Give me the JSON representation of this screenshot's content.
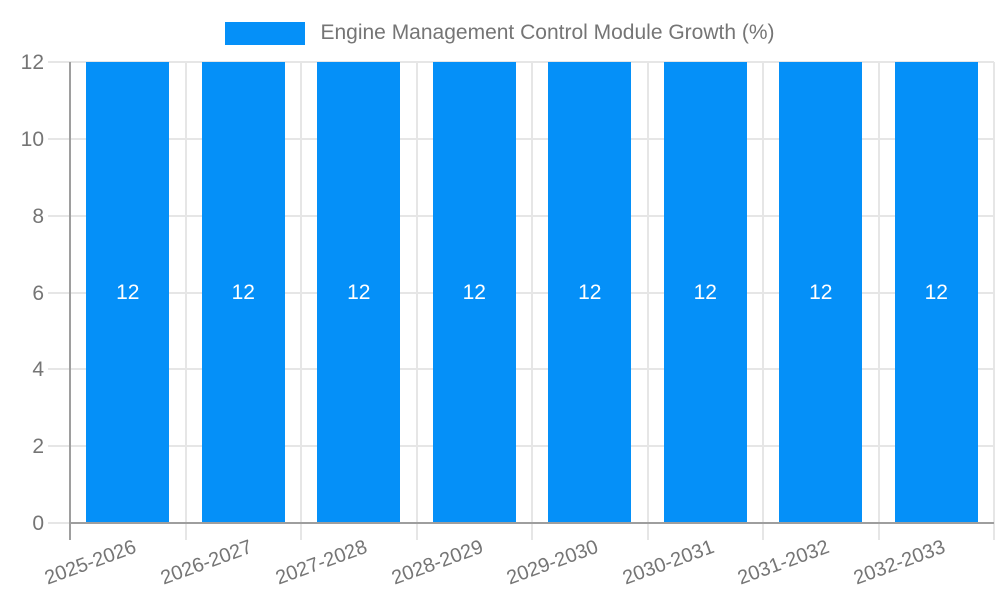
{
  "chart_data": {
    "type": "bar",
    "title": "Engine Management Control Module Growth (%)",
    "categories": [
      "2025-2026",
      "2026-2027",
      "2027-2028",
      "2028-2029",
      "2029-2030",
      "2030-2031",
      "2031-2032",
      "2032-2033"
    ],
    "series": [
      {
        "name": "Engine Management Control Module Growth (%)",
        "values": [
          12,
          12,
          12,
          12,
          12,
          12,
          12,
          12
        ],
        "bar_labels": [
          "12",
          "12",
          "12",
          "12",
          "12",
          "12",
          "12",
          "12"
        ]
      }
    ],
    "xlabel": "",
    "ylabel": "",
    "ylim": [
      0,
      12
    ],
    "y_ticks": [
      0,
      2,
      4,
      6,
      8,
      10,
      12
    ],
    "grid": true,
    "legend_position": "top",
    "x_labels_rotated": true,
    "colors": {
      "bar": "#0590f8",
      "grid": "#e6e6e6",
      "axis": "#9e9e9e",
      "tick_text": "#757575",
      "bar_label_text": "#ffffff",
      "background": "#ffffff"
    }
  },
  "legend": {
    "label": "Engine Management Control Module Growth (%)"
  }
}
